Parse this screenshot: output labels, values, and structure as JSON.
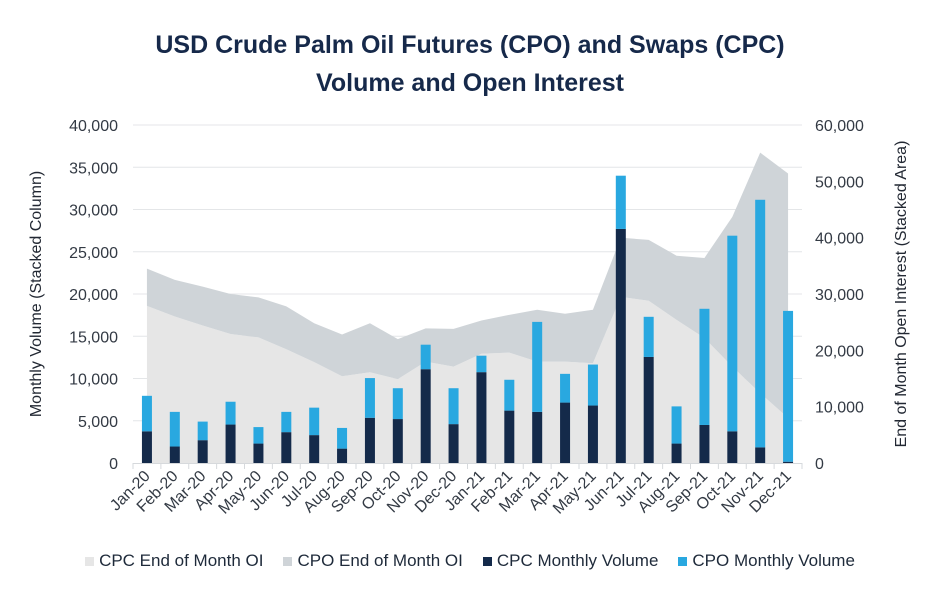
{
  "chart_data": {
    "type": "bar",
    "title": "USD Crude Palm Oil Futures (CPO) and Swaps (CPC) Volume and Open Interest",
    "title_lines": [
      "USD Crude Palm Oil Futures (CPO) and Swaps (CPC)",
      "Volume and Open Interest"
    ],
    "categories": [
      "Jan-20",
      "Feb-20",
      "Mar-20",
      "Apr-20",
      "May-20",
      "Jun-20",
      "Jul-20",
      "Aug-20",
      "Sep-20",
      "Oct-20",
      "Nov-20",
      "Dec-20",
      "Jan-21",
      "Feb-21",
      "Mar-21",
      "Apr-21",
      "May-21",
      "Jun-21",
      "Jul-21",
      "Aug-21",
      "Sep-21",
      "Oct-21",
      "Nov-21",
      "Dec-21"
    ],
    "ylabel": "Monthly Volume (Stacked Column)",
    "y2label": "End of Month Open Interest (Stacked Area)",
    "ylim": [
      0,
      40000
    ],
    "y2lim": [
      0,
      60000
    ],
    "yticks": [
      "0",
      "5,000",
      "10,000",
      "15,000",
      "20,000",
      "25,000",
      "30,000",
      "35,000",
      "40,000"
    ],
    "y2ticks": [
      "0",
      "10,000",
      "20,000",
      "30,000",
      "40,000",
      "50,000",
      "60,000"
    ],
    "grid": true,
    "legend_position": "bottom",
    "series": [
      {
        "name": "CPC End of Month OI",
        "type": "area",
        "axis": "right",
        "stack": "oi",
        "color": "#e6e6e6",
        "values": [
          27900,
          26000,
          24400,
          22900,
          22300,
          20200,
          17900,
          15400,
          16100,
          14900,
          18000,
          17100,
          19400,
          19600,
          18000,
          18000,
          17700,
          29500,
          28800,
          25400,
          22200,
          17100,
          12400,
          8000
        ]
      },
      {
        "name": "CPO End of Month OI",
        "type": "area",
        "axis": "right",
        "stack": "oi",
        "color": "#cfd4d8",
        "values": [
          6600,
          6500,
          6900,
          7100,
          7100,
          7600,
          6900,
          7400,
          8700,
          7100,
          5900,
          6700,
          5900,
          6700,
          9200,
          8500,
          9500,
          10500,
          10800,
          11400,
          14200,
          26600,
          42700,
          43400
        ]
      },
      {
        "name": "CPC Monthly Volume",
        "type": "bar",
        "axis": "left",
        "stack": "vol",
        "color": "#142a4a",
        "values": [
          3750,
          1950,
          2700,
          4550,
          2300,
          3650,
          3300,
          1700,
          5350,
          5200,
          11100,
          4600,
          10750,
          6200,
          6050,
          7150,
          6800,
          27700,
          12550,
          2300,
          4500,
          3750,
          1850,
          150
        ]
      },
      {
        "name": "CPO Monthly Volume",
        "type": "bar",
        "axis": "left",
        "stack": "vol",
        "color": "#29a8e0",
        "values": [
          4200,
          4100,
          2200,
          2700,
          1950,
          2400,
          3250,
          2450,
          4700,
          3650,
          2900,
          4250,
          1950,
          3650,
          10650,
          3400,
          4850,
          6300,
          4750,
          4400,
          13750,
          23150,
          29300,
          17850
        ]
      }
    ]
  }
}
